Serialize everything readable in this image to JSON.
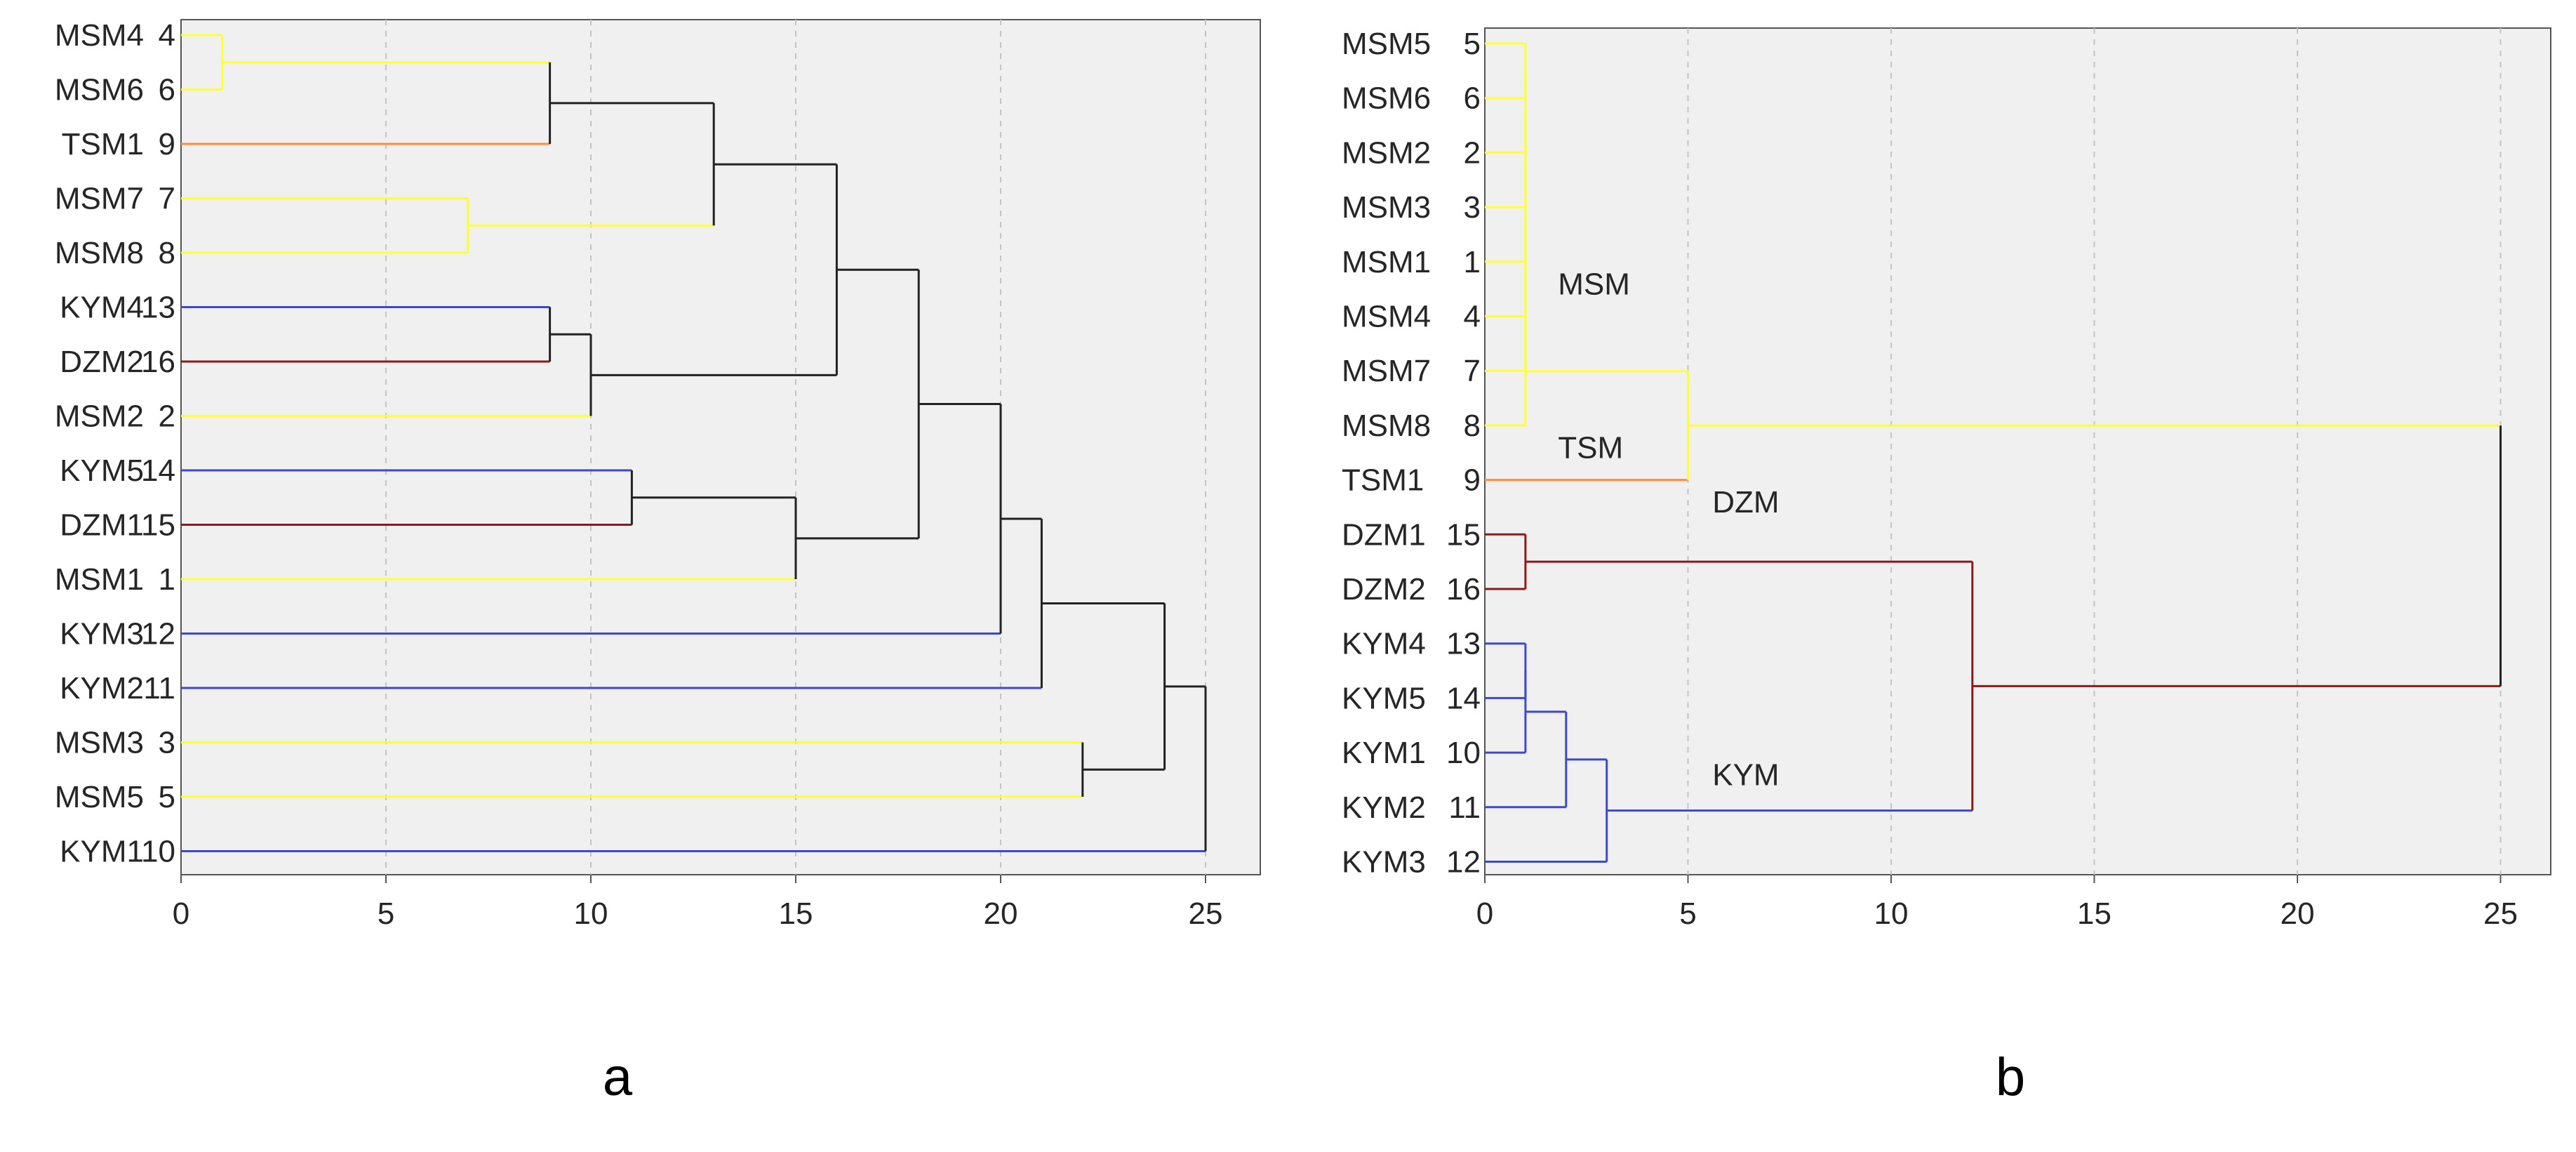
{
  "chart_data": [
    {
      "type": "dendrogram",
      "panel_label": "a",
      "xlim": [
        0,
        26
      ],
      "xticks": [
        0,
        5,
        10,
        15,
        20,
        25
      ],
      "grid": "vertical-dashed",
      "leaves": [
        {
          "name": "MSM4",
          "num": "4",
          "color": "#ffff33"
        },
        {
          "name": "MSM6",
          "num": "6",
          "color": "#ffff33"
        },
        {
          "name": "TSM1",
          "num": "9",
          "color": "#ff8c42"
        },
        {
          "name": "MSM7",
          "num": "7",
          "color": "#ffff33"
        },
        {
          "name": "MSM8",
          "num": "8",
          "color": "#ffff33"
        },
        {
          "name": "KYM4",
          "num": "13",
          "color": "#3f48cc"
        },
        {
          "name": "DZM2",
          "num": "16",
          "color": "#8b1a1a"
        },
        {
          "name": "MSM2",
          "num": "2",
          "color": "#ffff33"
        },
        {
          "name": "KYM5",
          "num": "14",
          "color": "#3f48cc"
        },
        {
          "name": "DZM1",
          "num": "15",
          "color": "#8b1a1a"
        },
        {
          "name": "MSM1",
          "num": "1",
          "color": "#ffff33"
        },
        {
          "name": "KYM3",
          "num": "12",
          "color": "#3f48cc"
        },
        {
          "name": "KYM2",
          "num": "11",
          "color": "#3f48cc"
        },
        {
          "name": "MSM3",
          "num": "3",
          "color": "#ffff33"
        },
        {
          "name": "MSM5",
          "num": "5",
          "color": "#ffff33"
        },
        {
          "name": "KYM1",
          "num": "10",
          "color": "#3f48cc"
        }
      ],
      "merges": [
        {
          "a": "L0",
          "b": "L1",
          "h": 1,
          "color": "#ffff33"
        },
        {
          "a": "L3",
          "b": "L4",
          "h": 7,
          "color": "#ffff33"
        },
        {
          "a": "N0",
          "b": "L2",
          "h": 9,
          "color": "#222222"
        },
        {
          "a": "L5",
          "b": "L6",
          "h": 9,
          "color": "#222222"
        },
        {
          "a": "N3",
          "b": "L7",
          "h": 10,
          "color": "#222222"
        },
        {
          "a": "L8",
          "b": "L9",
          "h": 11,
          "color": "#222222"
        },
        {
          "a": "N2",
          "b": "N1",
          "h": 13,
          "color": "#222222"
        },
        {
          "a": "N5",
          "b": "L10",
          "h": 15,
          "color": "#222222"
        },
        {
          "a": "N6",
          "b": "N4",
          "h": 16,
          "color": "#222222"
        },
        {
          "a": "N8",
          "b": "N7",
          "h": 18,
          "color": "#222222"
        },
        {
          "a": "N9",
          "b": "L11",
          "h": 20,
          "color": "#222222"
        },
        {
          "a": "N10",
          "b": "L12",
          "h": 21,
          "color": "#222222"
        },
        {
          "a": "L13",
          "b": "L14",
          "h": 22,
          "color": "#222222"
        },
        {
          "a": "N11",
          "b": "N12",
          "h": 24,
          "color": "#222222"
        },
        {
          "a": "N13",
          "b": "L15",
          "h": 25,
          "color": "#222222"
        }
      ],
      "annotations": []
    },
    {
      "type": "dendrogram",
      "panel_label": "b",
      "xlim": [
        0,
        26
      ],
      "xticks": [
        0,
        5,
        10,
        15,
        20,
        25
      ],
      "grid": "vertical-dashed",
      "leaves": [
        {
          "name": "MSM5",
          "num": "5",
          "color": "#ffff33"
        },
        {
          "name": "MSM6",
          "num": "6",
          "color": "#ffff33"
        },
        {
          "name": "MSM2",
          "num": "2",
          "color": "#ffff33"
        },
        {
          "name": "MSM3",
          "num": "3",
          "color": "#ffff33"
        },
        {
          "name": "MSM1",
          "num": "1",
          "color": "#ffff33"
        },
        {
          "name": "MSM4",
          "num": "4",
          "color": "#ffff33"
        },
        {
          "name": "MSM7",
          "num": "7",
          "color": "#ffff33"
        },
        {
          "name": "MSM8",
          "num": "8",
          "color": "#ffff33"
        },
        {
          "name": "TSM1",
          "num": "9",
          "color": "#ff8c42"
        },
        {
          "name": "DZM1",
          "num": "15",
          "color": "#8b1a1a"
        },
        {
          "name": "DZM2",
          "num": "16",
          "color": "#8b1a1a"
        },
        {
          "name": "KYM4",
          "num": "13",
          "color": "#3f48cc"
        },
        {
          "name": "KYM5",
          "num": "14",
          "color": "#3f48cc"
        },
        {
          "name": "KYM1",
          "num": "10",
          "color": "#3f48cc"
        },
        {
          "name": "KYM2",
          "num": "11",
          "color": "#3f48cc"
        },
        {
          "name": "KYM3",
          "num": "12",
          "color": "#3f48cc"
        }
      ],
      "merges": [
        {
          "a": "L0",
          "b": "L1",
          "h": 1,
          "color": "#ffff33"
        },
        {
          "a": "N0",
          "b": "L2",
          "h": 1,
          "color": "#ffff33"
        },
        {
          "a": "N1",
          "b": "L3",
          "h": 1,
          "color": "#ffff33"
        },
        {
          "a": "N2",
          "b": "L4",
          "h": 1,
          "color": "#ffff33"
        },
        {
          "a": "N3",
          "b": "L5",
          "h": 1,
          "color": "#ffff33"
        },
        {
          "a": "N4",
          "b": "L6",
          "h": 1,
          "color": "#ffff33"
        },
        {
          "a": "N5",
          "b": "L7",
          "h": 1,
          "color": "#ffff33"
        },
        {
          "a": "L9",
          "b": "L10",
          "h": 1,
          "color": "#8b1a1a"
        },
        {
          "a": "L11",
          "b": "L12",
          "h": 1,
          "color": "#3f48cc"
        },
        {
          "a": "N8",
          "b": "L13",
          "h": 1,
          "color": "#3f48cc"
        },
        {
          "a": "N9",
          "b": "L14",
          "h": 2,
          "color": "#3f48cc"
        },
        {
          "a": "N10",
          "b": "L15",
          "h": 3,
          "color": "#3f48cc"
        },
        {
          "a": "N6",
          "b": "L8",
          "h": 5,
          "color": "#ffff33"
        },
        {
          "a": "N7",
          "b": "N11",
          "h": 12,
          "color": "#8b1a1a"
        },
        {
          "a": "N12",
          "b": "N13",
          "h": 25,
          "color": "#222222"
        }
      ],
      "annotations": [
        {
          "text": "MSM",
          "x": 1.8,
          "leaf": 4.6
        },
        {
          "text": "TSM",
          "x": 1.8,
          "leaf": 7.6
        },
        {
          "text": "DZM",
          "x": 5.6,
          "leaf": 8.6
        },
        {
          "text": "KYM",
          "x": 5.6,
          "leaf": 13.6
        }
      ]
    }
  ]
}
